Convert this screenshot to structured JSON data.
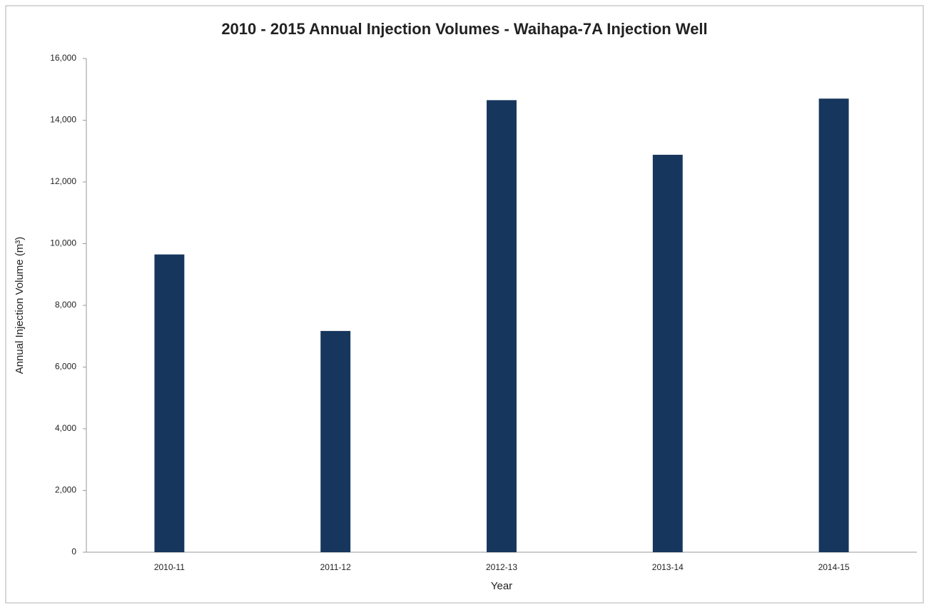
{
  "chart_data": {
    "type": "bar",
    "title": "2010 - 2015 Annual Injection Volumes - Waihapa-7A Injection Well",
    "x_label": "Year",
    "y_label": "Annual Injection Volume (m³)",
    "categories": [
      "2010-11",
      "2011-12",
      "2012-13",
      "2013-14",
      "2014-15"
    ],
    "values": [
      9650,
      7170,
      14650,
      12880,
      14700
    ],
    "color": "#17365d",
    "ylim": [
      0,
      16000
    ],
    "yticks": [
      0,
      {
        "value": 2000,
        "label": "2,000"
      },
      {
        "value": 4000,
        "label": "4,000"
      },
      {
        "value": 6000,
        "label": "6,000"
      },
      {
        "value": 8000,
        "label": "8,000"
      },
      {
        "value": 10000,
        "label": "10,000"
      },
      {
        "value": 12000,
        "label": "12,000"
      },
      {
        "value": 14000,
        "label": "14,000"
      },
      {
        "value": 16000,
        "label": "16,000"
      }
    ],
    "grid": false
  }
}
